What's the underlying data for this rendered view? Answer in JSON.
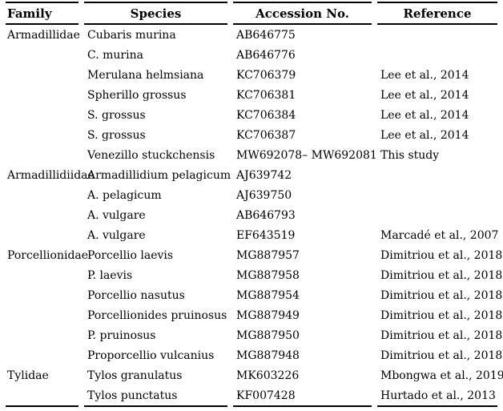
{
  "colors": {
    "background": "#ffffff",
    "text": "#000000",
    "rule": "#000000"
  },
  "table": {
    "headers": {
      "family": "Family",
      "species": "Species",
      "accession": "Accession No.",
      "reference": "Reference"
    },
    "rows": [
      {
        "family": "Armadillidae",
        "species": "Cubaris murina",
        "accession": "AB646775",
        "reference": ""
      },
      {
        "family": "",
        "species": "C. murina",
        "accession": "AB646776",
        "reference": ""
      },
      {
        "family": "",
        "species": "Merulana helmsiana",
        "accession": "KC706379",
        "reference": "Lee et al., 2014"
      },
      {
        "family": "",
        "species": "Spherillo grossus",
        "accession": "KC706381",
        "reference": "Lee et al., 2014"
      },
      {
        "family": "",
        "species": "S. grossus",
        "accession": "KC706384",
        "reference": "Lee et al., 2014"
      },
      {
        "family": "",
        "species": "S. grossus",
        "accession": "KC706387",
        "reference": "Lee et al., 2014"
      },
      {
        "family": "",
        "species": "Venezillo stuckchensis",
        "accession": "MW692078– MW692081",
        "reference": "This study"
      },
      {
        "family": "Armadillidiidae",
        "species": "Armadillidium pelagicum",
        "accession": "AJ639742",
        "reference": ""
      },
      {
        "family": "",
        "species": "A. pelagicum",
        "accession": "AJ639750",
        "reference": ""
      },
      {
        "family": "",
        "species": "A. vulgare",
        "accession": "AB646793",
        "reference": ""
      },
      {
        "family": "",
        "species": "A. vulgare",
        "accession": "EF643519",
        "reference": "Marcadé et al., 2007"
      },
      {
        "family": "Porcellionidae",
        "species": "Porcellio laevis",
        "accession": "MG887957",
        "reference": "Dimitriou et al., 2018"
      },
      {
        "family": "",
        "species": "P. laevis",
        "accession": "MG887958",
        "reference": "Dimitriou et al., 2018"
      },
      {
        "family": "",
        "species": "Porcellio nasutus",
        "accession": "MG887954",
        "reference": "Dimitriou et al., 2018"
      },
      {
        "family": "",
        "species": "Porcellionides pruinosus",
        "accession": "MG887949",
        "reference": "Dimitriou et al., 2018"
      },
      {
        "family": "",
        "species": "P. pruinosus",
        "accession": "MG887950",
        "reference": "Dimitriou et al., 2018"
      },
      {
        "family": "",
        "species": "Proporcellio vulcanius",
        "accession": "MG887948",
        "reference": "Dimitriou et al., 2018"
      },
      {
        "family": "Tylidae",
        "species": "Tylos granulatus",
        "accession": "MK603226",
        "reference": "Mbongwa et al., 2019"
      },
      {
        "family": "",
        "species": "Tylos punctatus",
        "accession": "KF007428",
        "reference": "Hurtado et al., 2013"
      }
    ]
  }
}
